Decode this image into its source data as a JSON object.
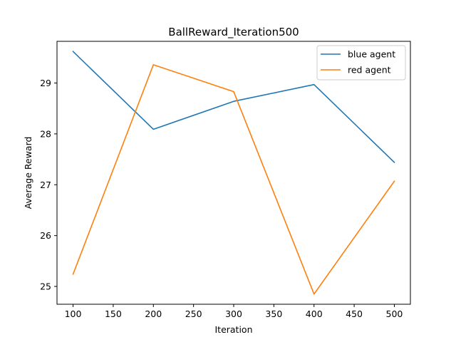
{
  "chart_data": {
    "type": "line",
    "title": "BallReward_Iteration500",
    "xlabel": "Iteration",
    "ylabel": "Average Reward",
    "x": [
      100,
      200,
      300,
      400,
      500
    ],
    "xlim": [
      80,
      520
    ],
    "ylim": [
      24.65,
      29.82
    ],
    "xticks": [
      100,
      150,
      200,
      250,
      300,
      350,
      400,
      450,
      500
    ],
    "yticks": [
      25,
      26,
      27,
      28,
      29
    ],
    "grid": false,
    "legend_position": "top-right",
    "series": [
      {
        "name": "blue agent",
        "color": "#1f77b4",
        "values": [
          29.62,
          28.09,
          28.64,
          28.97,
          27.44
        ]
      },
      {
        "name": "red agent",
        "color": "#ff7f0e",
        "values": [
          25.24,
          29.36,
          28.83,
          24.85,
          27.07
        ]
      }
    ]
  }
}
